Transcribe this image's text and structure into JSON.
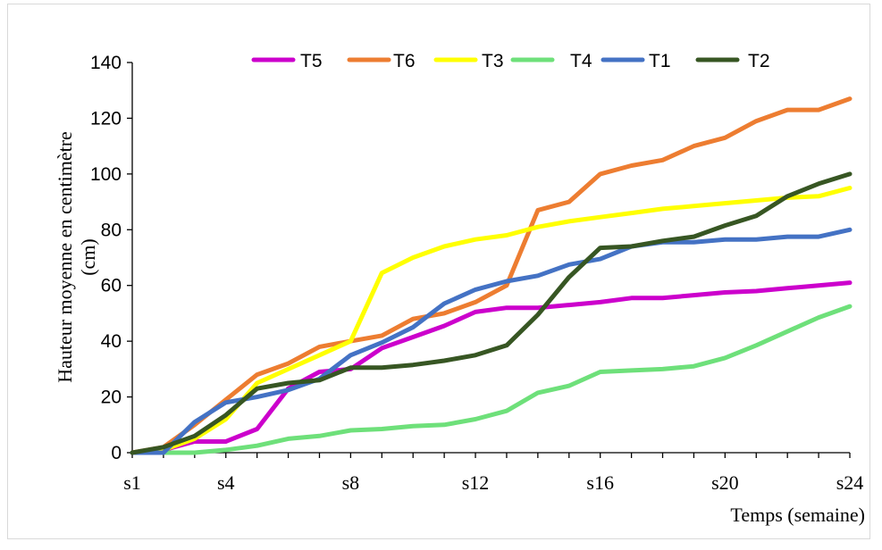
{
  "chart_data": {
    "type": "line",
    "xlabel": "Temps (semaine)",
    "ylabel_line1": "Hauteur moyenne en centimètre",
    "ylabel_line2": "(cm)",
    "ylim": [
      0,
      140
    ],
    "yticks": [
      0,
      20,
      40,
      60,
      80,
      100,
      120,
      140
    ],
    "x_tick_labels": [
      {
        "label": "s1",
        "week": 1
      },
      {
        "label": "s4",
        "week": 4
      },
      {
        "label": "s8",
        "week": 8
      },
      {
        "label": "s12",
        "week": 12
      },
      {
        "label": "s16",
        "week": 16
      },
      {
        "label": "s20",
        "week": 20
      },
      {
        "label": "s24",
        "week": 24
      }
    ],
    "x": [
      1,
      2,
      3,
      4,
      5,
      6,
      7,
      8,
      9,
      10,
      11,
      12,
      13,
      14,
      15,
      16,
      17,
      18,
      19,
      20,
      21,
      22,
      23,
      24
    ],
    "grid": false,
    "legend_position": "top",
    "series": [
      {
        "name": "T5",
        "color": "#cc00cc",
        "values": [
          0,
          1,
          4,
          4,
          8.5,
          23,
          29,
          30,
          37.5,
          41.5,
          45.5,
          50.5,
          52,
          52,
          53,
          54,
          55.5,
          55.5,
          56.5,
          57.5,
          58,
          59,
          60,
          61
        ]
      },
      {
        "name": "T6",
        "color": "#ed7d31",
        "values": [
          0,
          2,
          10,
          19,
          28,
          32,
          38,
          40,
          42,
          48,
          50,
          54,
          60,
          87,
          90,
          100,
          103,
          105,
          110,
          113,
          119,
          123,
          123,
          127
        ]
      },
      {
        "name": "T3",
        "color": "#ffff00",
        "values": [
          0,
          1,
          5,
          12,
          25,
          30,
          35,
          40,
          64.5,
          70,
          74,
          76.5,
          78,
          81,
          83,
          84.5,
          86,
          87.5,
          88.5,
          89.5,
          90.5,
          91.5,
          92,
          95
        ]
      },
      {
        "name": "T4",
        "color": "#6ee07a",
        "values": [
          0,
          0,
          0,
          1,
          2.5,
          5,
          6,
          8,
          8.5,
          9.5,
          10,
          12,
          15,
          21.5,
          24,
          29,
          29.5,
          30,
          31,
          34,
          38.5,
          43.5,
          48.5,
          52.5
        ]
      },
      {
        "name": "T1",
        "color": "#4472c4",
        "values": [
          0,
          0,
          11,
          18,
          20,
          22.5,
          26.5,
          35,
          39.5,
          45,
          53.5,
          58.5,
          61.5,
          63.5,
          67.5,
          69.5,
          74,
          75.5,
          75.5,
          76.5,
          76.5,
          77.5,
          77.5,
          80
        ]
      },
      {
        "name": "T2",
        "color": "#375623",
        "values": [
          0,
          2,
          6,
          13.5,
          23,
          25,
          26,
          30.5,
          30.5,
          31.5,
          33,
          35,
          38.5,
          49.5,
          63,
          73.5,
          74,
          76,
          77.5,
          81.5,
          85,
          92,
          96.5,
          100
        ]
      }
    ]
  }
}
